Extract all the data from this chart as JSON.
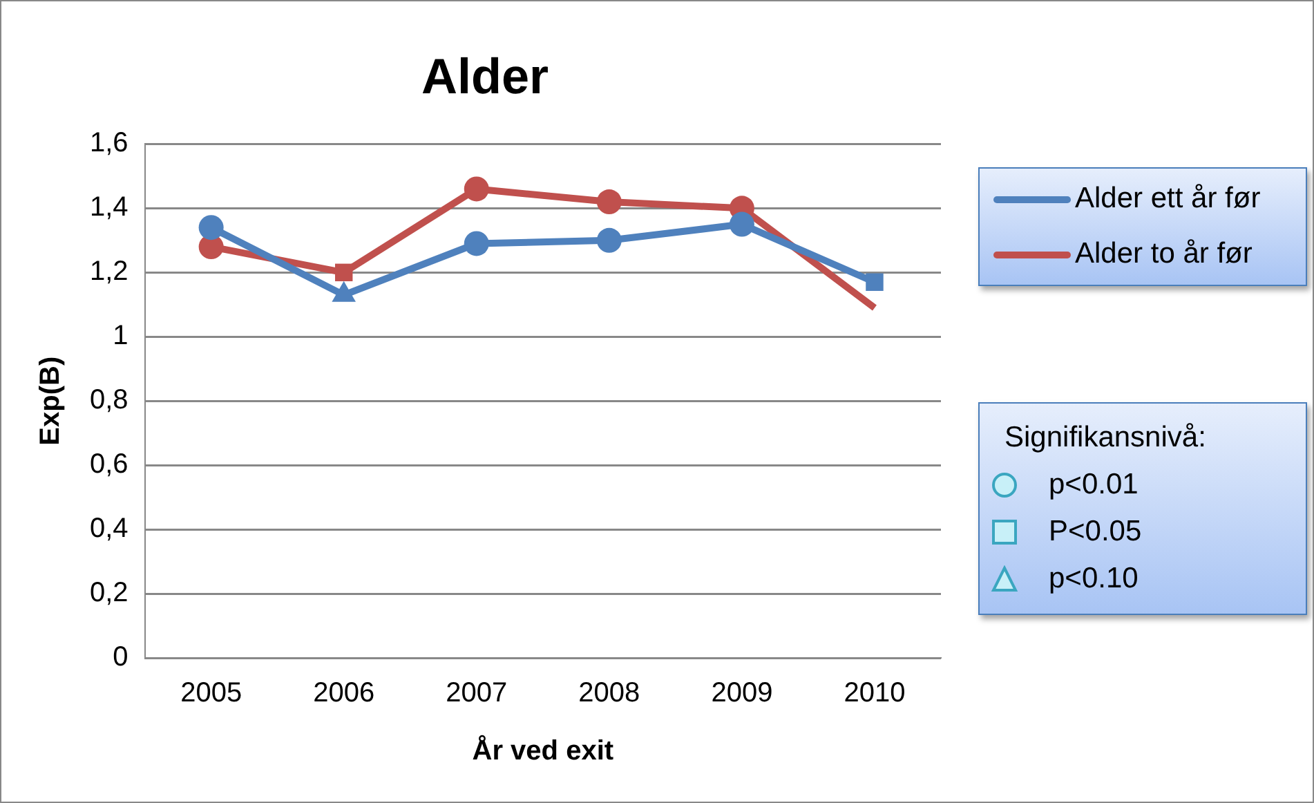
{
  "chart_data": {
    "type": "line",
    "title": "Alder",
    "xlabel": "År ved exit",
    "ylabel": "Exp(B)",
    "categories": [
      "2005",
      "2006",
      "2007",
      "2008",
      "2009",
      "2010"
    ],
    "series": [
      {
        "name": "Alder ett år før",
        "color": "#4f81bd",
        "values": [
          1.34,
          1.13,
          1.29,
          1.3,
          1.35,
          1.17
        ],
        "marker": [
          "circle",
          "triangle",
          "circle",
          "circle",
          "circle",
          "square"
        ]
      },
      {
        "name": "Alder to år før",
        "color": "#c0504d",
        "values": [
          1.28,
          1.2,
          1.46,
          1.42,
          1.4,
          1.09
        ],
        "marker": [
          "circle",
          "square",
          "circle",
          "circle",
          "circle",
          "none"
        ]
      }
    ],
    "ylim": [
      0,
      1.6
    ],
    "yticks": [
      0,
      {
        "value": 0.2,
        "label": "0,2"
      },
      {
        "value": 0.4,
        "label": "0,4"
      },
      {
        "value": 0.6,
        "label": "0,6"
      },
      {
        "value": 0.8,
        "label": "0,8"
      },
      1,
      {
        "value": 1.2,
        "label": "1,2"
      },
      {
        "value": 1.4,
        "label": "1,4"
      },
      {
        "value": 1.6,
        "label": "1,6"
      }
    ],
    "grid": "y",
    "legend": "top right",
    "line_style": "solid",
    "annotations": [
      "Signifikansnivå:",
      "p<0.01",
      "P<0.05",
      "p<0.10"
    ]
  }
}
